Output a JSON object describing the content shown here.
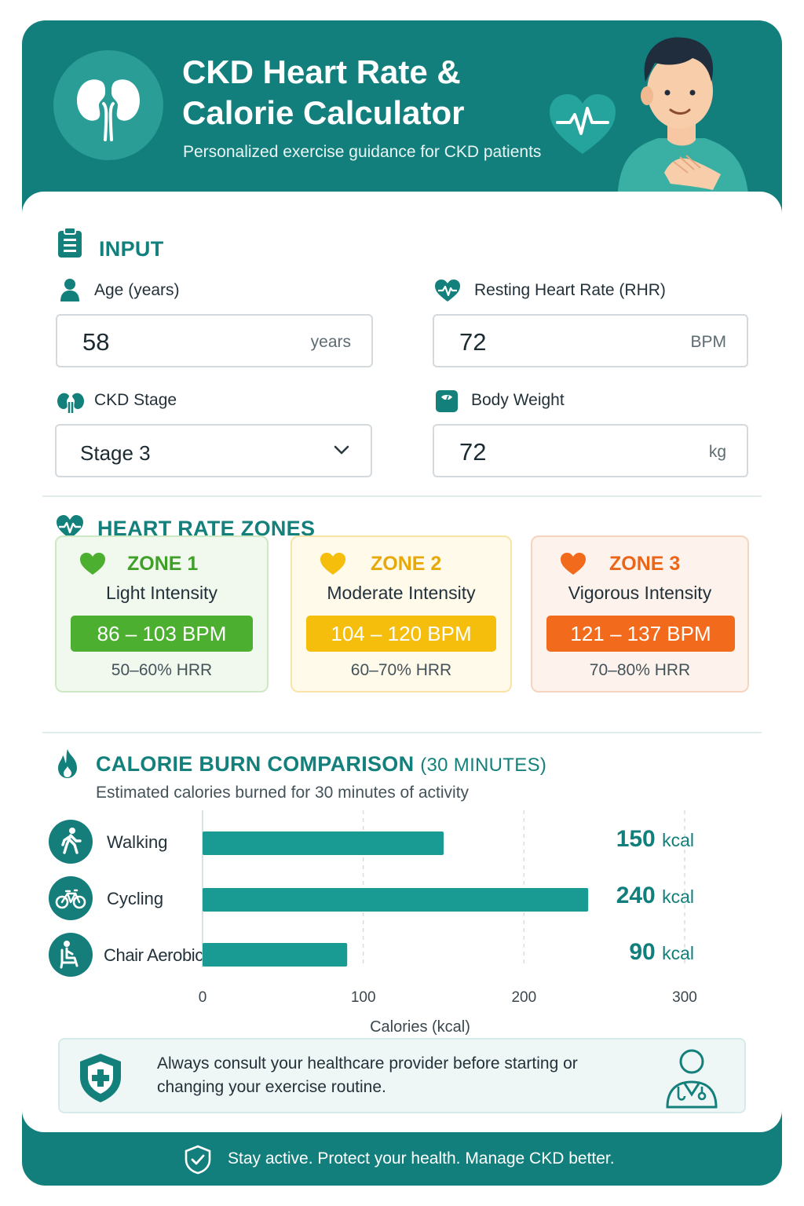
{
  "header": {
    "title": "CKD Heart Rate & Calorie Calculator",
    "subtitle": "Personalized exercise guidance for CKD patients",
    "logo_icon": "kidneys-icon",
    "illustration": "person-with-heart-illustration"
  },
  "input": {
    "section_title": "INPUT",
    "age": {
      "label": "Age (years)",
      "value": "58",
      "unit": "years"
    },
    "rhr": {
      "label": "Resting Heart Rate (RHR)",
      "value": "72",
      "unit": "BPM"
    },
    "ckd_stage": {
      "label": "CKD Stage",
      "value": "Stage 3"
    },
    "weight": {
      "label": "Body Weight",
      "value": "72",
      "unit": "kg"
    }
  },
  "zones": {
    "section_title": "HEART RATE ZONES",
    "items": [
      {
        "name": "ZONE 1",
        "intensity": "Light Intensity",
        "bpm": "86 – 103 BPM",
        "hrr": "50–60% HRR",
        "color": "#4caf30"
      },
      {
        "name": "ZONE 2",
        "intensity": "Moderate Intensity",
        "bpm": "104 – 120 BPM",
        "hrr": "60–70% HRR",
        "color": "#f5bd0c"
      },
      {
        "name": "ZONE 3",
        "intensity": "Vigorous Intensity",
        "bpm": "121 – 137 BPM",
        "hrr": "70–80% HRR",
        "color": "#f26b1d"
      }
    ]
  },
  "calories": {
    "section_title": "CALORIE BURN COMPARISON",
    "section_title_suffix": "(30 MINUTES)",
    "subtitle": "Estimated calories burned for 30 minutes of activity",
    "unit": "kcal"
  },
  "chart_data": {
    "type": "bar",
    "orientation": "horizontal",
    "categories": [
      "Walking",
      "Cycling",
      "Chair Aerobics"
    ],
    "values": [
      150,
      240,
      90
    ],
    "data_labels": [
      "150",
      "240",
      "90"
    ],
    "xlabel": "Calories (kcal)",
    "xlim": [
      0,
      300
    ],
    "xticks": [
      0,
      100,
      200,
      300
    ],
    "grid": "vertical dashed",
    "bar_color": "#199a93"
  },
  "notice": {
    "text": "Always consult your healthcare provider before starting or changing your exercise routine."
  },
  "footer": {
    "text": "Stay active. Protect your health. Manage CKD better."
  },
  "colors": {
    "primary": "#137f7c",
    "accent": "#199a93"
  }
}
